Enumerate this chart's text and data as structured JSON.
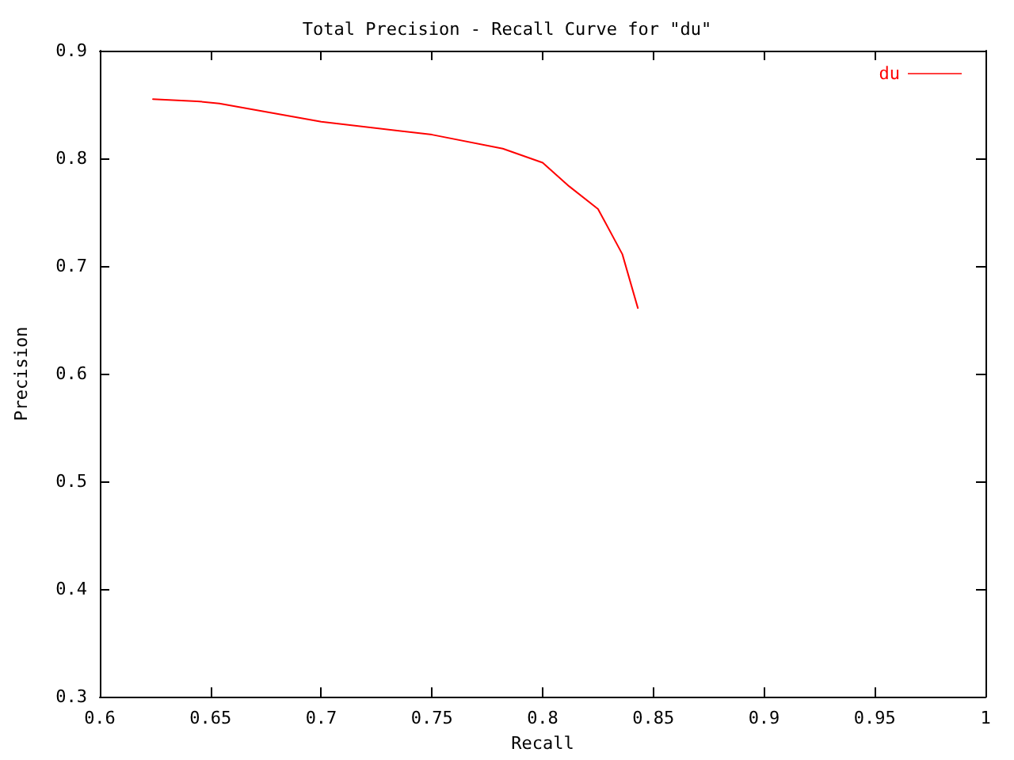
{
  "chart_data": {
    "type": "line",
    "title": "Total Precision - Recall Curve for \"du\"",
    "xlabel": "Recall",
    "ylabel": "Precision",
    "series": [
      {
        "name": "du",
        "color": "#ff0000",
        "x": [
          0.624,
          0.644,
          0.654,
          0.7,
          0.75,
          0.782,
          0.8,
          0.812,
          0.825,
          0.836,
          0.843
        ],
        "values": [
          0.855,
          0.853,
          0.851,
          0.834,
          0.822,
          0.809,
          0.796,
          0.774,
          0.753,
          0.711,
          0.661
        ]
      }
    ],
    "xlim": [
      0.6,
      1
    ],
    "xticks": [
      0.6,
      0.65,
      0.7,
      0.75,
      0.8,
      0.85,
      0.9,
      0.95,
      {
        "value": 1,
        "label": "1"
      }
    ],
    "ylim": [
      0.3,
      0.9
    ],
    "yticks": [
      0.3,
      0.4,
      0.5,
      0.6,
      0.7,
      0.8,
      0.9
    ],
    "legend": "top right",
    "grid": false,
    "marker": "none",
    "line_style": "solid"
  }
}
